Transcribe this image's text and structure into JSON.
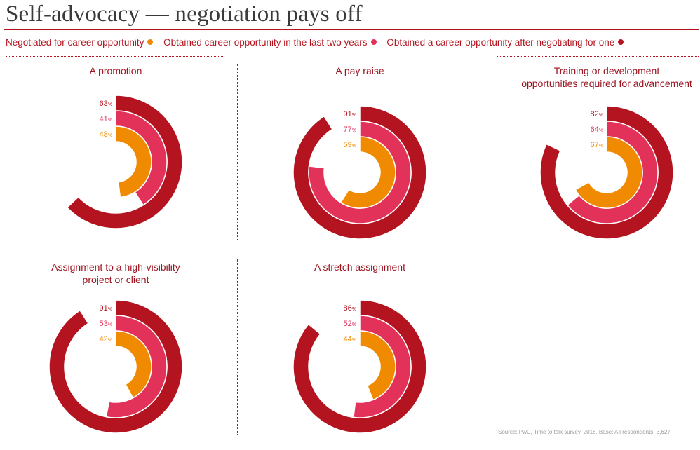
{
  "title": "Self-advocacy — negotiation pays off",
  "legend": [
    {
      "label": "Negotiated for career opportunity",
      "color": "#f08a00"
    },
    {
      "label": "Obtained career opportunity in the last two years",
      "color": "#e3325a"
    },
    {
      "label": "Obtained a career opportunity after negotiating for one",
      "color": "#b4141f"
    }
  ],
  "source": "Source: PwC, Time to talk survey, 2018. Base: All respondents, 3,627",
  "chart_data": {
    "type": "radial-bar",
    "series": [
      {
        "name": "Obtained a career opportunity after negotiating for one",
        "color": "#b4141f"
      },
      {
        "name": "Obtained career opportunity in the last two years",
        "color": "#e3325a"
      },
      {
        "name": "Negotiated for career opportunity",
        "color": "#f08a00"
      }
    ],
    "unit": "%",
    "panels": [
      {
        "title": [
          "A promotion"
        ],
        "values": [
          63,
          41,
          48
        ]
      },
      {
        "title": [
          "A pay raise"
        ],
        "values": [
          91,
          77,
          59
        ]
      },
      {
        "title": [
          "Training or development",
          "opportunities required for advancement"
        ],
        "values": [
          82,
          64,
          67
        ]
      },
      {
        "title": [
          "Assignment to a high-visibility",
          "project or client"
        ],
        "values": [
          91,
          53,
          42
        ]
      },
      {
        "title": [
          "A stretch assignment"
        ],
        "values": [
          86,
          52,
          44
        ]
      }
    ]
  }
}
